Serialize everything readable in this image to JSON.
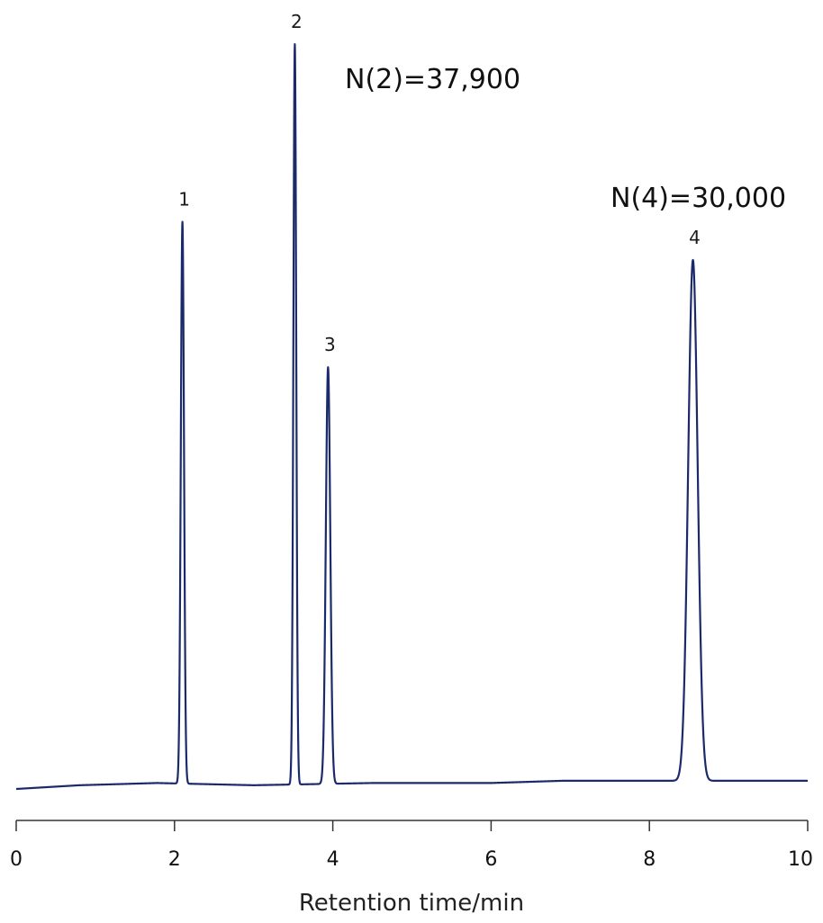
{
  "chart_data": {
    "type": "line",
    "title": "",
    "xlabel": "Retention time/min",
    "ylabel": "",
    "xlim": [
      0,
      10
    ],
    "ylim": [
      0,
      1
    ],
    "x_ticks": [
      0,
      2,
      4,
      6,
      8,
      10
    ],
    "x_tick_labels": [
      "0",
      "2",
      "4",
      "6",
      "8",
      "10"
    ],
    "grid": false,
    "line_color": "#1b2a6b",
    "baseline": [
      {
        "x": 0.0,
        "y": 0.0
      },
      {
        "x": 0.8,
        "y": 0.005
      },
      {
        "x": 1.78,
        "y": 0.008
      },
      {
        "x": 3.0,
        "y": 0.005
      },
      {
        "x": 4.5,
        "y": 0.008
      },
      {
        "x": 6.0,
        "y": 0.008
      },
      {
        "x": 6.9,
        "y": 0.011
      },
      {
        "x": 10.0,
        "y": 0.011
      }
    ],
    "peaks": [
      {
        "label": "1",
        "x": 2.1,
        "height": 0.755,
        "width": 0.02
      },
      {
        "label": "2",
        "x": 3.52,
        "height": 0.995,
        "width": 0.018
      },
      {
        "label": "3",
        "x": 3.94,
        "height": 0.56,
        "width": 0.028
      },
      {
        "label": "4",
        "x": 8.55,
        "height": 0.7,
        "width": 0.06
      }
    ],
    "annotations": [
      "N(2)=37,900",
      "N(4)=30,000"
    ]
  }
}
